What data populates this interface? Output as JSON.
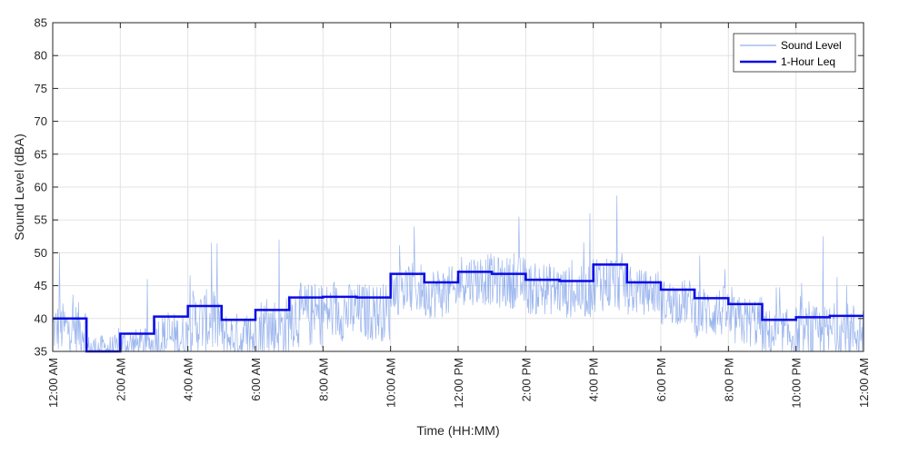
{
  "colors": {
    "raw": "#7b9ee8",
    "leq": "#0a0ae6",
    "grid": "#e3e3e3",
    "axis": "#262626"
  },
  "chart_data": {
    "type": "line",
    "title": "",
    "xlabel": "Time (HH:MM)",
    "ylabel": "Sound Level (dBA)",
    "xlim": [
      0,
      24
    ],
    "ylim": [
      35,
      85
    ],
    "yticks": [
      35,
      40,
      45,
      50,
      55,
      60,
      65,
      70,
      75,
      80,
      85
    ],
    "xticks": [
      0,
      2,
      4,
      6,
      8,
      10,
      12,
      14,
      16,
      18,
      20,
      22,
      24
    ],
    "xtick_labels": [
      "12:00 AM",
      "2:00 AM",
      "4:00 AM",
      "6:00 AM",
      "8:00 AM",
      "10:00 AM",
      "12:00 PM",
      "2:00 PM",
      "4:00 PM",
      "6:00 PM",
      "8:00 PM",
      "10:00 PM",
      "12:00 AM"
    ],
    "grid": true,
    "legend_position": "top-right",
    "series": [
      {
        "name": "Sound Level",
        "style": "thin-noisy",
        "hourly_baseline": [
          38.5,
          35.5,
          36,
          37,
          39.5,
          37,
          38.5,
          40.5,
          41,
          41,
          44.5,
          44,
          46,
          45.5,
          44.5,
          44,
          45.5,
          44,
          42.5,
          41,
          39.5,
          37.5,
          37.5,
          38
        ],
        "hourly_spread": [
          4,
          2,
          2.5,
          4,
          5,
          4,
          5,
          5,
          4.5,
          4.5,
          4,
          4,
          4,
          4,
          4,
          4,
          4.5,
          3.5,
          3.5,
          4,
          4,
          4,
          4.5,
          4.5
        ],
        "peaks": [
          {
            "x": 0.2,
            "y": 50
          },
          {
            "x": 2.8,
            "y": 46
          },
          {
            "x": 4.7,
            "y": 51.5
          },
          {
            "x": 6.7,
            "y": 52
          },
          {
            "x": 10.7,
            "y": 54
          },
          {
            "x": 13.8,
            "y": 55.5
          },
          {
            "x": 15.9,
            "y": 56
          },
          {
            "x": 16.7,
            "y": 58.7
          },
          {
            "x": 22.8,
            "y": 52.5
          }
        ]
      },
      {
        "name": "1-Hour Leq",
        "style": "step-thick",
        "x_start": [
          0,
          1,
          2,
          3,
          4,
          5,
          6,
          7,
          8,
          9,
          10,
          11,
          12,
          13,
          14,
          15,
          16,
          17,
          18,
          19,
          20,
          21,
          22,
          23
        ],
        "values": [
          40,
          35,
          37.7,
          40.3,
          41.9,
          39.8,
          41.3,
          43.2,
          43.3,
          43.2,
          46.8,
          45.5,
          47.1,
          46.8,
          45.9,
          45.7,
          48.2,
          45.5,
          44.4,
          43.1,
          42.2,
          39.8,
          40.2,
          40.4
        ]
      }
    ]
  }
}
